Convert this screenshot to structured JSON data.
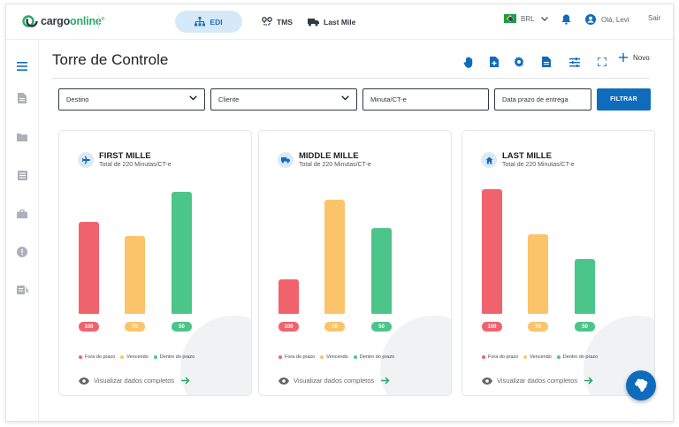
{
  "brand": {
    "name_prefix": "cargo",
    "name_suffix": "online",
    "mark": "®"
  },
  "nav": {
    "edi": "EDI",
    "tms": "TMS",
    "last_mile": "Last Mile"
  },
  "header": {
    "currency": "BRL",
    "greeting": "Olá, Levi",
    "logout": "Sair"
  },
  "page": {
    "title": "Torre de Controle",
    "new_label": "Novo"
  },
  "filters": {
    "destino": "Destino",
    "cliente": "Cliente",
    "minuta": "Minuta/CT-e",
    "data_prazo": "Data prazo de entrega",
    "button": "FILTRAR"
  },
  "legend": {
    "fora": "Fora do prazo",
    "vencendo": "Vencendo",
    "dentro": "Dentro do prazo"
  },
  "colors": {
    "fora": "#f0636d",
    "vencendo": "#fcc46a",
    "dentro": "#4cc58a",
    "primary": "#0f6cbd"
  },
  "view_all": "Visualizar dados completos",
  "chart_data": [
    {
      "type": "bar",
      "title": "FIRST MILLE",
      "subtitle": "Total de 220 Minutas/CT-e",
      "categories": [
        "Fora do prazo",
        "Vencendo",
        "Dentro do prazo"
      ],
      "values": [
        100,
        70,
        50
      ],
      "labels": [
        "100",
        "70",
        "50"
      ],
      "icon": "airplane-icon",
      "bar_levels": [
        0.72,
        0.61,
        0.95
      ]
    },
    {
      "type": "bar",
      "title": "MIDDLE MILLE",
      "subtitle": "Total de 220 Minutas/CT-e",
      "categories": [
        "Fora do prazo",
        "Vencendo",
        "Dentro do prazo"
      ],
      "values": [
        100,
        70,
        50
      ],
      "labels": [
        "100",
        "70",
        "50"
      ],
      "icon": "truck-icon",
      "bar_levels": [
        0.27,
        0.89,
        0.67
      ]
    },
    {
      "type": "bar",
      "title": "LAST MILLE",
      "subtitle": "Total de 220 Minutas/CT-e",
      "categories": [
        "Fora do prazo",
        "Vencendo",
        "Dentro do prazo"
      ],
      "values": [
        100,
        70,
        50
      ],
      "labels": [
        "100",
        "70",
        "50"
      ],
      "icon": "home-icon",
      "bar_levels": [
        0.97,
        0.62,
        0.43
      ]
    }
  ]
}
